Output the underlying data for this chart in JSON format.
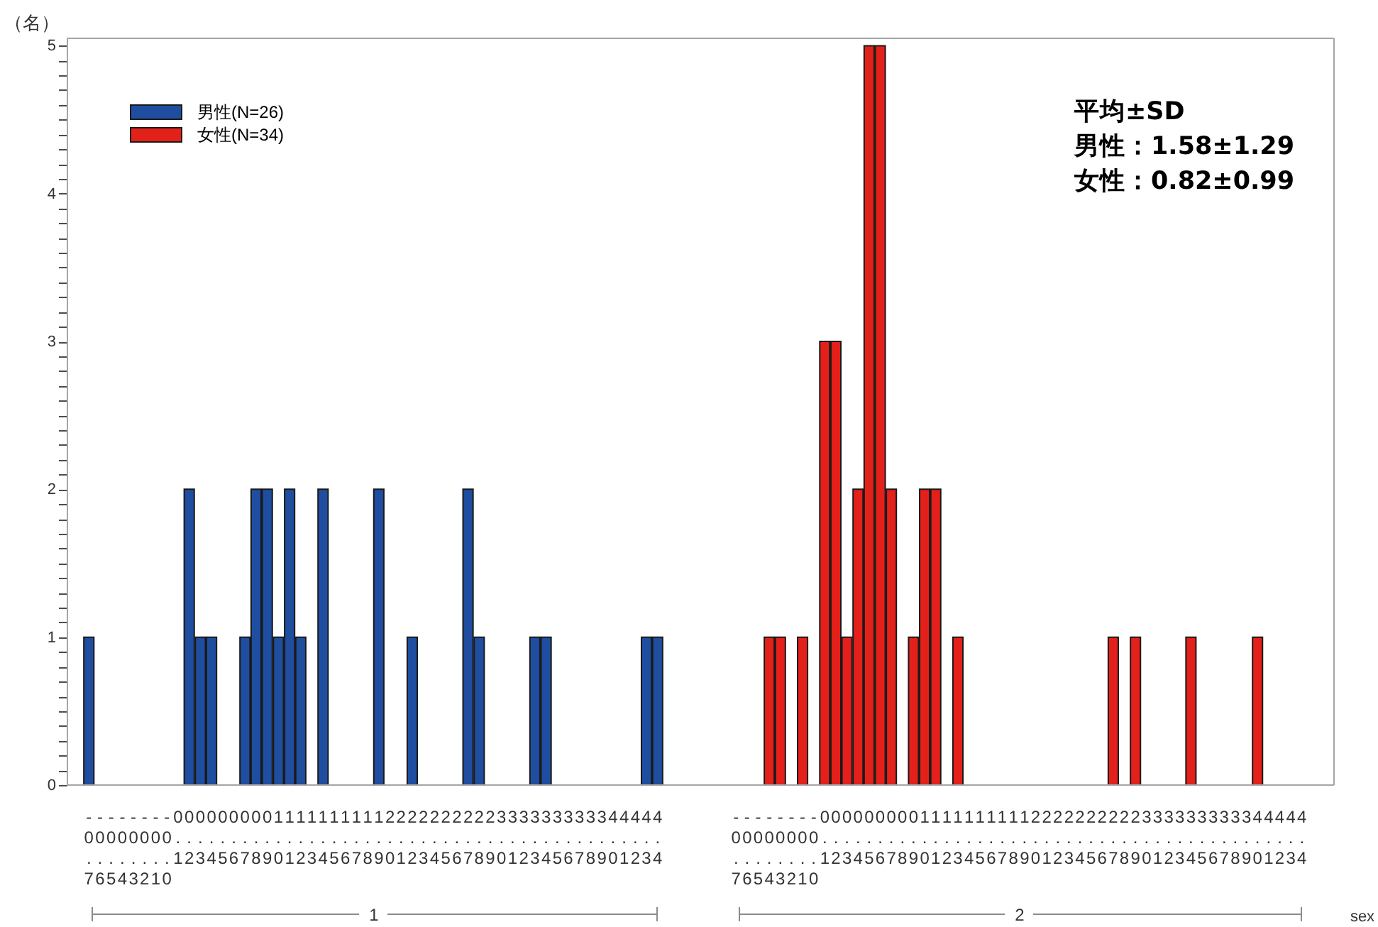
{
  "chart_data": [
    {
      "type": "bar",
      "ylabel": "（名）",
      "xlabel": "1",
      "legend": "top left",
      "categories": [
        "-0.7",
        "-0.6",
        "-0.5",
        "-0.4",
        "-0.3",
        "-0.2",
        "-0.1",
        "-0.0",
        "0.1",
        "0.2",
        "0.3",
        "0.4",
        "0.5",
        "0.6",
        "0.7",
        "0.8",
        "0.9",
        "1.0",
        "1.1",
        "1.2",
        "1.3",
        "1.4",
        "1.5",
        "1.6",
        "1.7",
        "1.8",
        "1.9",
        "2.0",
        "2.1",
        "2.2",
        "2.3",
        "2.4",
        "2.5",
        "2.6",
        "2.7",
        "2.8",
        "2.9",
        "3.0",
        "3.1",
        "3.2",
        "3.3",
        "3.4",
        "3.5",
        "3.6",
        "3.7",
        "3.8",
        "3.9",
        "4.0",
        "4.1",
        "4.2",
        "4.3",
        "4.4"
      ],
      "series": [
        {
          "name": "男性(N=26)",
          "color": "#1f4ea0",
          "values": [
            1,
            null,
            null,
            null,
            null,
            null,
            null,
            null,
            null,
            2,
            1,
            1,
            null,
            null,
            1,
            2,
            2,
            1,
            2,
            1,
            null,
            2,
            null,
            null,
            null,
            null,
            2,
            null,
            null,
            1,
            null,
            null,
            null,
            null,
            2,
            1,
            null,
            null,
            null,
            null,
            1,
            1,
            null,
            null,
            null,
            null,
            null,
            null,
            null,
            null,
            1,
            1
          ]
        }
      ],
      "ylim": [
        0,
        5.05
      ],
      "yticks": [
        0,
        {
          "value": 0.1,
          "label": null
        },
        {
          "value": 0.2,
          "label": null
        },
        {
          "value": 0.3,
          "label": null
        },
        {
          "value": 0.4,
          "label": null
        },
        {
          "value": 0.5,
          "label": null
        },
        {
          "value": 0.6,
          "label": null
        },
        {
          "value": 0.7,
          "label": null
        },
        {
          "value": 0.8,
          "label": null
        },
        {
          "value": 0.9,
          "label": null
        },
        1,
        {
          "value": 1.1,
          "label": null
        },
        {
          "value": 1.2,
          "label": null
        },
        {
          "value": 1.3,
          "label": null
        },
        {
          "value": 1.4,
          "label": null
        },
        {
          "value": 1.5,
          "label": null
        },
        {
          "value": 1.6,
          "label": null
        },
        {
          "value": 1.7,
          "label": null
        },
        {
          "value": 1.8,
          "label": null
        },
        {
          "value": 1.9,
          "label": null
        },
        2,
        {
          "value": 2.1,
          "label": null
        },
        {
          "value": 2.2,
          "label": null
        },
        {
          "value": 2.3,
          "label": null
        },
        {
          "value": 2.4,
          "label": null
        },
        {
          "value": 2.5,
          "label": null
        },
        {
          "value": 2.6,
          "label": null
        },
        {
          "value": 2.7,
          "label": null
        },
        {
          "value": 2.8,
          "label": null
        },
        {
          "value": 2.9,
          "label": null
        },
        3,
        {
          "value": 3.1,
          "label": null
        },
        {
          "value": 3.2,
          "label": null
        },
        {
          "value": 3.3,
          "label": null
        },
        {
          "value": 3.4,
          "label": null
        },
        {
          "value": 3.5,
          "label": null
        },
        {
          "value": 3.6,
          "label": null
        },
        {
          "value": 3.7,
          "label": null
        },
        {
          "value": 3.8,
          "label": null
        },
        {
          "value": 3.9,
          "label": null
        },
        4,
        {
          "value": 4.1,
          "label": null
        },
        {
          "value": 4.2,
          "label": null
        },
        {
          "value": 4.3,
          "label": null
        },
        {
          "value": 4.4,
          "label": null
        },
        {
          "value": 4.5,
          "label": null
        },
        {
          "value": 4.6,
          "label": null
        },
        {
          "value": 4.7,
          "label": null
        },
        {
          "value": 4.8,
          "label": null
        },
        {
          "value": 4.9,
          "label": null
        },
        5
      ]
    },
    {
      "type": "bar",
      "xlabel": "2",
      "tick_labels": "x",
      "categories": [
        "-0.7",
        "-0.6",
        "-0.5",
        "-0.4",
        "-0.3",
        "-0.2",
        "-0.1",
        "-0.0",
        "0.1",
        "0.2",
        "0.3",
        "0.4",
        "0.5",
        "0.6",
        "0.7",
        "0.8",
        "0.9",
        "1.0",
        "1.1",
        "1.2",
        "1.3",
        "1.4",
        "1.5",
        "1.6",
        "1.7",
        "1.8",
        "1.9",
        "2.0",
        "2.1",
        "2.2",
        "2.3",
        "2.4",
        "2.5",
        "2.6",
        "2.7",
        "2.8",
        "2.9",
        "3.0",
        "3.1",
        "3.2",
        "3.3",
        "3.4",
        "3.5",
        "3.6",
        "3.7",
        "3.8",
        "3.9",
        "4.0",
        "4.1",
        "4.2",
        "4.3",
        "4.4"
      ],
      "series": [
        {
          "name": "女性(N=34)",
          "color": "#e4201a",
          "values": [
            null,
            null,
            null,
            1,
            1,
            null,
            1,
            null,
            3,
            3,
            1,
            2,
            5,
            5,
            2,
            null,
            1,
            2,
            2,
            null,
            1,
            null,
            null,
            null,
            null,
            null,
            null,
            null,
            null,
            null,
            null,
            null,
            null,
            null,
            1,
            null,
            1,
            null,
            null,
            null,
            null,
            1,
            null,
            null,
            null,
            null,
            null,
            1,
            null,
            null,
            null,
            null
          ]
        }
      ],
      "ylim": [
        0,
        5.05
      ],
      "annotations": [
        "平均±SD",
        "男性：1.58±1.29",
        "女性：0.82±0.99",
        "sex"
      ]
    }
  ]
}
